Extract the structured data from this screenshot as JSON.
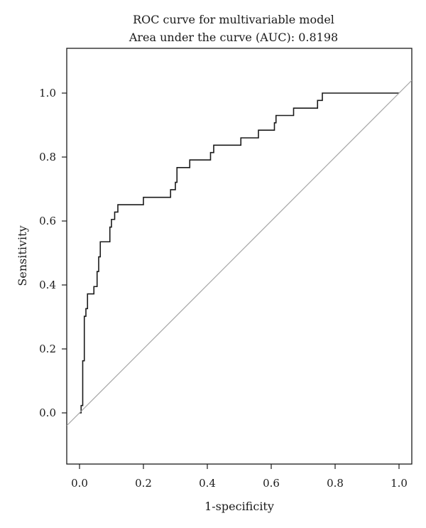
{
  "chart_data": {
    "type": "line",
    "title_lines": [
      "ROC curve for multivariable model",
      "Area under the curve (AUC): 0.8198"
    ],
    "xlabel": "1-specificity",
    "ylabel": "Sensitivity",
    "xlim": [
      -0.04,
      1.04
    ],
    "ylim": [
      -0.16,
      1.14
    ],
    "x_ticks": [
      0.0,
      0.2,
      0.4,
      0.6,
      0.8,
      1.0
    ],
    "x_tick_labels": [
      "0.0",
      "0.2",
      "0.4",
      "0.6",
      "0.8",
      "1.0"
    ],
    "y_ticks": [
      0.0,
      0.2,
      0.4,
      0.6,
      0.8,
      1.0
    ],
    "y_tick_labels": [
      "0.0",
      "0.2",
      "0.4",
      "0.6",
      "0.8",
      "1.0"
    ],
    "grid": false,
    "series": [
      {
        "kind": "step",
        "color": "#1a1a1a",
        "points": [
          [
            0.0,
            0.0
          ],
          [
            0.005,
            0.0
          ],
          [
            0.005,
            0.023
          ],
          [
            0.01,
            0.023
          ],
          [
            0.01,
            0.163
          ],
          [
            0.015,
            0.163
          ],
          [
            0.015,
            0.302
          ],
          [
            0.02,
            0.302
          ],
          [
            0.02,
            0.326
          ],
          [
            0.025,
            0.326
          ],
          [
            0.025,
            0.372
          ],
          [
            0.045,
            0.372
          ],
          [
            0.045,
            0.395
          ],
          [
            0.055,
            0.395
          ],
          [
            0.055,
            0.442
          ],
          [
            0.06,
            0.442
          ],
          [
            0.06,
            0.488
          ],
          [
            0.065,
            0.488
          ],
          [
            0.065,
            0.535
          ],
          [
            0.095,
            0.535
          ],
          [
            0.095,
            0.581
          ],
          [
            0.1,
            0.581
          ],
          [
            0.1,
            0.605
          ],
          [
            0.11,
            0.605
          ],
          [
            0.11,
            0.628
          ],
          [
            0.12,
            0.628
          ],
          [
            0.12,
            0.651
          ],
          [
            0.2,
            0.651
          ],
          [
            0.2,
            0.674
          ],
          [
            0.285,
            0.674
          ],
          [
            0.285,
            0.698
          ],
          [
            0.3,
            0.698
          ],
          [
            0.3,
            0.721
          ],
          [
            0.305,
            0.721
          ],
          [
            0.305,
            0.767
          ],
          [
            0.345,
            0.767
          ],
          [
            0.345,
            0.791
          ],
          [
            0.41,
            0.791
          ],
          [
            0.41,
            0.814
          ],
          [
            0.42,
            0.814
          ],
          [
            0.42,
            0.837
          ],
          [
            0.505,
            0.837
          ],
          [
            0.505,
            0.86
          ],
          [
            0.56,
            0.86
          ],
          [
            0.56,
            0.884
          ],
          [
            0.61,
            0.884
          ],
          [
            0.61,
            0.907
          ],
          [
            0.615,
            0.907
          ],
          [
            0.615,
            0.93
          ],
          [
            0.67,
            0.93
          ],
          [
            0.67,
            0.953
          ],
          [
            0.745,
            0.953
          ],
          [
            0.745,
            0.977
          ],
          [
            0.76,
            0.977
          ],
          [
            0.76,
            1.0
          ],
          [
            1.0,
            1.0
          ]
        ]
      },
      {
        "kind": "reference",
        "color": "#a6a6a6",
        "points": [
          [
            -0.04,
            -0.04
          ],
          [
            1.04,
            1.04
          ]
        ]
      }
    ]
  }
}
